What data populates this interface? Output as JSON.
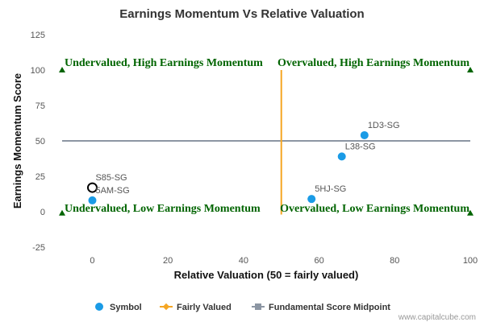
{
  "chart_data": {
    "type": "scatter",
    "title": "Earnings Momentum Vs Relative Valuation",
    "xlabel": "Relative Valuation (50 = fairly valued)",
    "ylabel": "Earnings Momentum Score",
    "xlim": [
      -8,
      100
    ],
    "ylim": [
      -25,
      125
    ],
    "x_ticks": [
      0,
      20,
      40,
      60,
      80,
      100
    ],
    "y_ticks": [
      -25,
      0,
      25,
      50,
      75,
      100,
      125
    ],
    "points": [
      {
        "name": "1D3-SG",
        "x": 72,
        "y": 54,
        "style": "filled"
      },
      {
        "name": "L38-SG",
        "x": 66,
        "y": 39,
        "style": "filled"
      },
      {
        "name": "5HJ-SG",
        "x": 58,
        "y": 9,
        "style": "filled"
      },
      {
        "name": "S85-SG",
        "x": 0,
        "y": 17,
        "style": "highlight"
      },
      {
        "name": "5AM-SG",
        "x": 0,
        "y": 8,
        "style": "filled"
      }
    ],
    "fairly_valued_line": {
      "x": 50,
      "y_range": [
        -2,
        100
      ]
    },
    "midpoint_line": {
      "y": 50,
      "x_range": [
        -8,
        100
      ]
    },
    "corner_markers": [
      {
        "x": -8,
        "y": 100
      },
      {
        "x": 100,
        "y": 100
      },
      {
        "x": -8,
        "y": -1
      },
      {
        "x": 100,
        "y": -1
      }
    ],
    "quadrant_labels": {
      "top_left": "Undervalued, High Earnings Momentum",
      "top_right": "Overvalued, High Earnings Momentum",
      "bottom_left": "Undervalued, Low Earnings Momentum",
      "bottom_right": "Overvalued, Low Earnings Momentum"
    },
    "legend": [
      {
        "name": "Symbol",
        "marker": "circle"
      },
      {
        "name": "Fairly Valued",
        "marker": "line-diamond"
      },
      {
        "name": "Fundamental Score Midpoint",
        "marker": "line-square"
      }
    ],
    "credit": "www.capitalcube.com"
  },
  "colors": {
    "point": "#1a9be6",
    "fairly_valued": "#f5a623",
    "midpoint": "#8c96a3",
    "quadrant_text": "#006400",
    "marker": "#006400",
    "grid_line": "#dddddd"
  }
}
